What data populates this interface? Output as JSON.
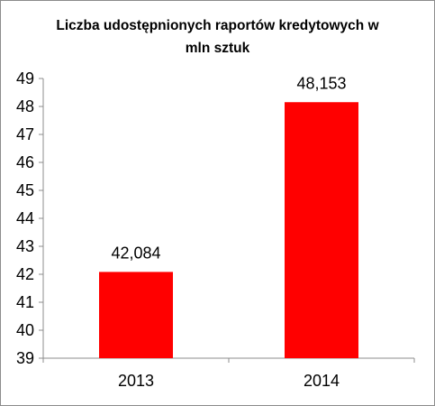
{
  "chart_data": {
    "type": "bar",
    "title_line1": "Liczba udostępnionych raportów kredytowych  w",
    "title_line2": "mln sztuk",
    "categories": [
      "2013",
      "2014"
    ],
    "values": [
      42.084,
      48.153
    ],
    "value_labels": [
      "42,084",
      "48,153"
    ],
    "ylim": [
      39,
      49
    ],
    "yticks": [
      "39",
      "40",
      "41",
      "42",
      "43",
      "44",
      "45",
      "46",
      "47",
      "48",
      "49"
    ],
    "grid": false,
    "legend": "none",
    "bar_color": "#ff0000"
  }
}
